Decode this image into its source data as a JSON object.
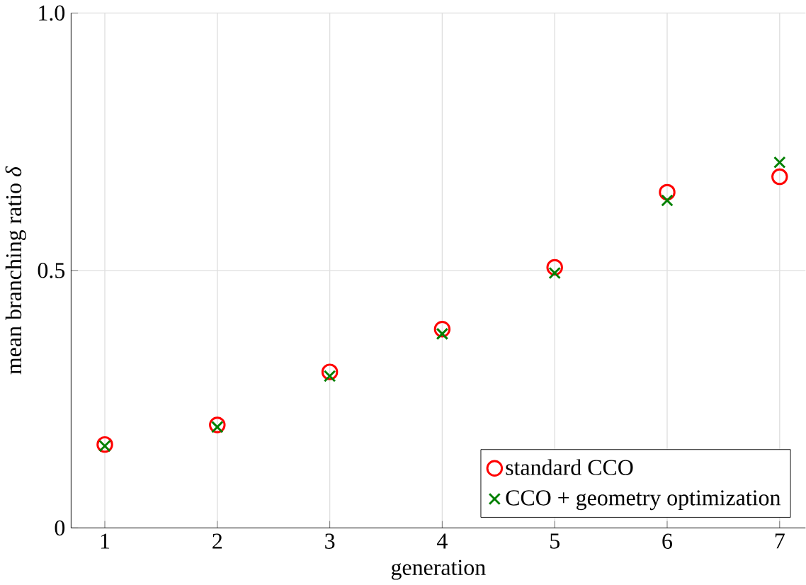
{
  "chart_data": {
    "type": "scatter",
    "xlabel": "generation",
    "ylabel": "mean branching ratio *δ*",
    "x": [
      1,
      2,
      3,
      4,
      5,
      6,
      7
    ],
    "series": [
      {
        "name": "standard CCO",
        "color": "#ff0000",
        "marker": "circle",
        "values": [
          0.162,
          0.2,
          0.303,
          0.386,
          0.506,
          0.652,
          0.682
        ]
      },
      {
        "name": "CCO + geometry optimization",
        "color": "#008000",
        "marker": "cross",
        "values": [
          0.159,
          0.196,
          0.295,
          0.377,
          0.495,
          0.636,
          0.71
        ]
      }
    ],
    "xlim": [
      0.7,
      7.23
    ],
    "ylim": [
      0,
      1
    ],
    "xticks": [
      1,
      2,
      3,
      4,
      5,
      6,
      7
    ],
    "yticks": [
      0,
      {
        "value": 0.5,
        "label": "0.5"
      },
      {
        "value": 1,
        "label": "1.0"
      }
    ],
    "grid": true,
    "legend": "bottom right"
  }
}
